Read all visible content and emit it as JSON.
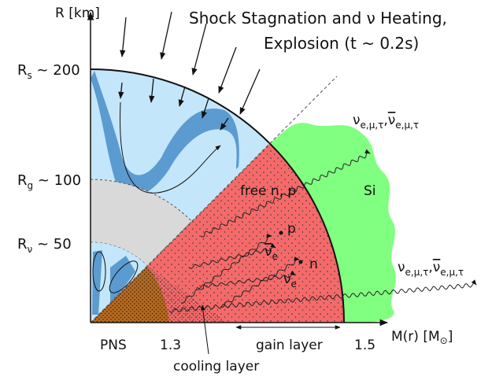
{
  "title": {
    "line1": "Shock Stagnation and ν Heating,",
    "line2": "Explosion  (t ~ 0.2s)"
  },
  "axes": {
    "y_label": "R [km]",
    "x_label": [
      "M(r) [M",
      "⊙",
      "]"
    ]
  },
  "radii": [
    [
      "R",
      "s",
      " ~ 200"
    ],
    [
      "R",
      "g",
      " ~ 100"
    ],
    [
      "R",
      "ν",
      " ~ 50"
    ]
  ],
  "mass_labels": [
    "PNS",
    "1.3",
    "1.5"
  ],
  "regions": {
    "gain_layer": "gain layer",
    "cooling_layer": "cooling layer",
    "free_nucleons": "free n, p",
    "silicon": "Si"
  },
  "particles": {
    "proton": "p",
    "neutron": "n",
    "antineutrino": [
      "ν",
      "e"
    ],
    "neutrino": [
      "ν",
      "e"
    ]
  },
  "neutrino_flux": [
    [
      "ν",
      "e,μ,τ",
      ",",
      "ν",
      "e,μ,τ"
    ],
    [
      "ν",
      "e,μ,τ",
      ",",
      "ν",
      "e,μ,τ"
    ]
  ]
}
